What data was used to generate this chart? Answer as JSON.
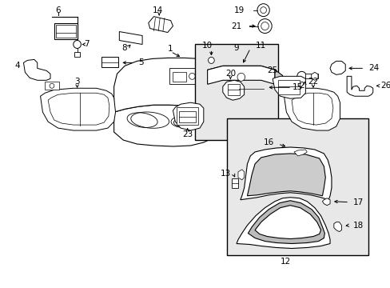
{
  "bg_color": "#ffffff",
  "fig_width": 4.89,
  "fig_height": 3.6,
  "dpi": 100,
  "label_fs": 7.5,
  "line_color": "#000000",
  "gray_fill": "#e8e8e8"
}
